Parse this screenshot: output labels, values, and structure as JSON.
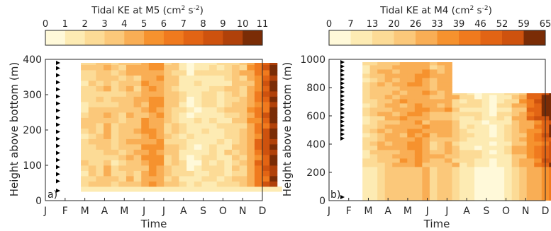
{
  "chart_data": [
    {
      "type": "heatmap",
      "panel_label": "a)",
      "colorbar": {
        "title_main": "Tidal KE at M5 (cm",
        "title_sup1": "2",
        "title_mid": " s",
        "title_sup2": "-2",
        "title_end": ")",
        "ticks": [
          "0",
          "1",
          "2",
          "3",
          "4",
          "5",
          "6",
          "7",
          "8",
          "9",
          "10",
          "11"
        ],
        "colors": [
          "#FFF9D9",
          "#FDEBB3",
          "#FCDB96",
          "#FBC87A",
          "#F9AE55",
          "#F6922E",
          "#F07A1E",
          "#E26414",
          "#CE520E",
          "#B0410A",
          "#7A2C06"
        ],
        "range": [
          0,
          11
        ]
      },
      "xlabel": "Time",
      "ylabel": "Height above bottom (m)",
      "x_ticks": [
        "J",
        "F",
        "M",
        "A",
        "M",
        "J",
        "J",
        "A",
        "S",
        "O",
        "N",
        "D"
      ],
      "y_ticks": [
        "0",
        "100",
        "200",
        "300",
        "400"
      ],
      "ylim": [
        0,
        400
      ],
      "x_start_month": 1.8,
      "x_end_month": 11.75,
      "y_top": 390,
      "col_base": [
        2.3,
        3.0,
        3.2,
        3.6,
        2.7,
        3.1,
        4.0,
        3.6,
        4.6,
        5.2,
        5.0,
        3.1,
        2.9,
        1.9,
        1.4,
        1.7,
        1.9,
        2.1,
        1.8,
        2.4,
        2.9,
        3.3,
        4.6,
        6.3,
        7.7,
        10.0
      ],
      "bottom_row": {
        "ymin": 25,
        "ymax": 40,
        "x_end_month": 12.0,
        "value": 1.5
      },
      "instrument_heights": [
        28,
        55,
        75,
        95,
        115,
        135,
        155,
        175,
        195,
        215,
        235,
        255,
        275,
        295,
        315,
        335,
        355,
        375,
        390
      ]
    },
    {
      "type": "heatmap",
      "panel_label": "b)",
      "colorbar": {
        "title_main": "Tidal KE at M4 (cm",
        "title_sup1": "2",
        "title_mid": " s",
        "title_sup2": "-2",
        "title_end": ")",
        "ticks": [
          "0",
          "7",
          "13",
          "20",
          "26",
          "33",
          "39",
          "46",
          "52",
          "59",
          "65"
        ],
        "colors": [
          "#FFF9D9",
          "#FDEBB3",
          "#FCDB96",
          "#FBC87A",
          "#F9AE55",
          "#F6922E",
          "#F07A1E",
          "#E26414",
          "#CE520E",
          "#7A2C06"
        ],
        "range": [
          0,
          65
        ]
      },
      "xlabel": "Time",
      "ylabel": "Height above bottom (m)",
      "x_ticks": [
        "J",
        "F",
        "M",
        "A",
        "M",
        "J",
        "J",
        "A",
        "S",
        "O",
        "N",
        "D"
      ],
      "y_ticks": [
        "0",
        "200",
        "400",
        "600",
        "800",
        "1000"
      ],
      "ylim": [
        0,
        1000
      ],
      "x_start_month": 1.7,
      "x_end_month": 11.95,
      "upper_limit_early": 980,
      "upper_limit_late": 760,
      "step_month": 5.9,
      "col_base": [
        14,
        19,
        22,
        24,
        27,
        29,
        31,
        33,
        30,
        24,
        26,
        28,
        22,
        15,
        13,
        10,
        8,
        6,
        9,
        14,
        22,
        28,
        34,
        40,
        48,
        56,
        62
      ],
      "bottom_block": {
        "ymin": 0,
        "ymax": 240
      },
      "instrument_heights": [
        25,
        440,
        470,
        500,
        530,
        560,
        590,
        620,
        650,
        680,
        710,
        740,
        770,
        800,
        830,
        860,
        890,
        920,
        950,
        980
      ]
    }
  ]
}
